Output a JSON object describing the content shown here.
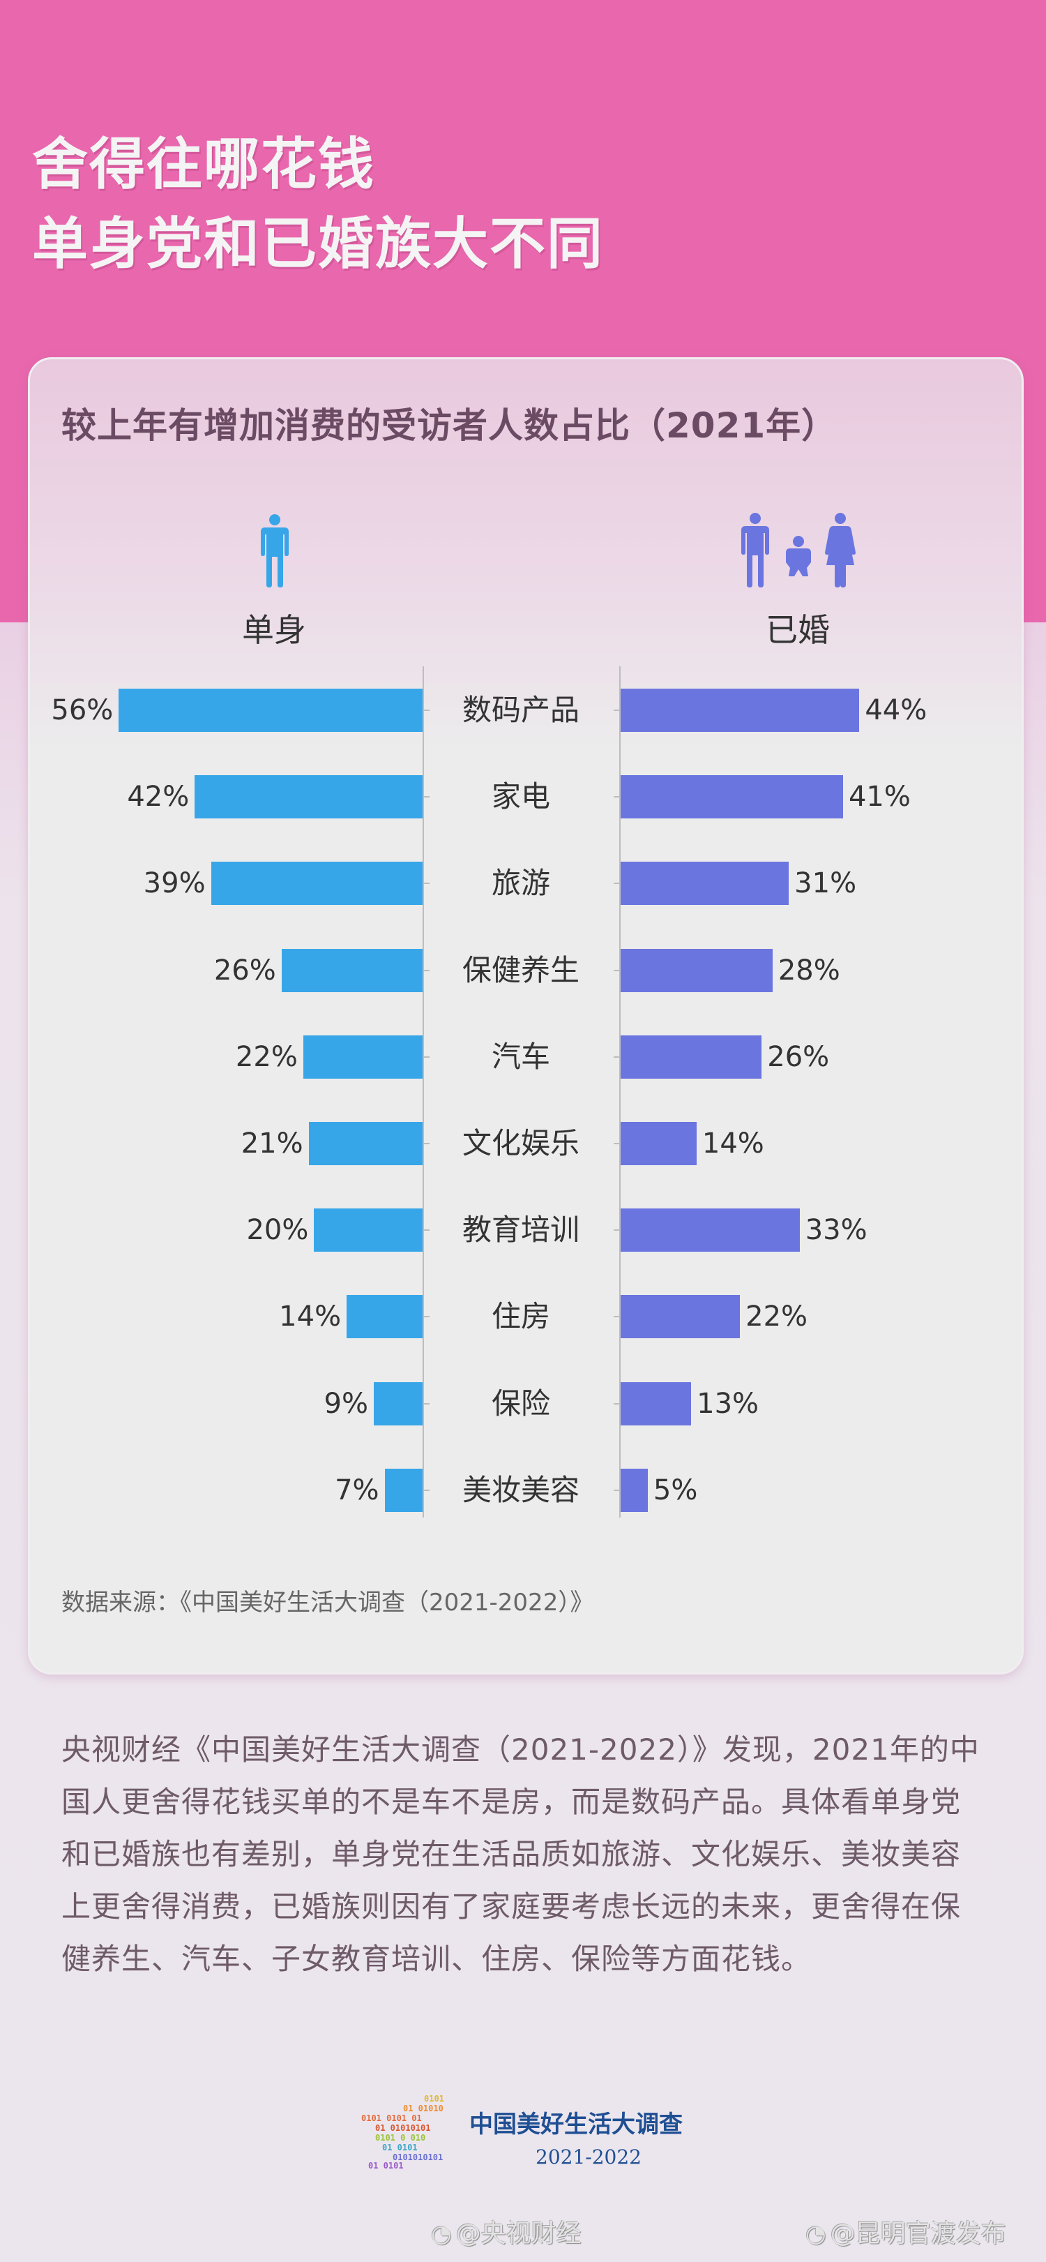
{
  "header": {
    "title_line1": "舍得往哪花钱",
    "title_line2": "单身党和已婚族大不同"
  },
  "chart_title": "较上年有增加消费的受访者人数占比（2021年）",
  "groups": {
    "left": {
      "label": "单身",
      "icon": "single-person-icon",
      "color": "#37a6e8"
    },
    "right": {
      "label": "已婚",
      "icon": "family-icon",
      "color": "#6b75e0"
    }
  },
  "rows": [
    {
      "category": "数码产品",
      "single": "56%",
      "married": "44%"
    },
    {
      "category": "家电",
      "single": "42%",
      "married": "41%"
    },
    {
      "category": "旅游",
      "single": "39%",
      "married": "31%"
    },
    {
      "category": "保健养生",
      "single": "26%",
      "married": "28%"
    },
    {
      "category": "汽车",
      "single": "22%",
      "married": "26%"
    },
    {
      "category": "文化娱乐",
      "single": "21%",
      "married": "14%"
    },
    {
      "category": "教育培训",
      "single": "20%",
      "married": "33%"
    },
    {
      "category": "住房",
      "single": "14%",
      "married": "22%"
    },
    {
      "category": "保险",
      "single": "9%",
      "married": "13%"
    },
    {
      "category": "美妆美容",
      "single": "7%",
      "married": "5%"
    }
  ],
  "source": "数据来源：《中国美好生活大调查（2021-2022）》",
  "paragraph": "央视财经《中国美好生活大调查（2021-2022）》发现，2021年的中国人更舍得花钱买单的不是车不是房，而是数码产品。具体看单身党和已婚族也有差别，单身党在生活品质如旅游、文化娱乐、美妆美容上更舍得消费，已婚族则因有了家庭要考虑长远的未来，更舍得在保健养生、汽车、子女教育培训、住房、保险等方面花钱。",
  "footer": {
    "logo_title": "中国美好生活大调查",
    "logo_year": "2021-2022",
    "watermark_left": "@央视财经",
    "watermark_right": "@昆明官渡发布"
  },
  "chart_data": {
    "type": "bar",
    "orientation": "horizontal-butterfly",
    "title": "较上年有增加消费的受访者人数占比（2021年）",
    "categories": [
      "数码产品",
      "家电",
      "旅游",
      "保健养生",
      "汽车",
      "文化娱乐",
      "教育培训",
      "住房",
      "保险",
      "美妆美容"
    ],
    "series": [
      {
        "name": "单身",
        "color": "#37a6e8",
        "values": [
          56,
          42,
          39,
          26,
          22,
          21,
          20,
          14,
          9,
          7
        ]
      },
      {
        "name": "已婚",
        "color": "#6b75e0",
        "values": [
          44,
          41,
          31,
          28,
          26,
          14,
          33,
          22,
          13,
          5
        ]
      }
    ],
    "unit": "%",
    "xlabel": "",
    "ylabel": "",
    "grid": false,
    "legend": "icons above each side",
    "source": "《中国美好生活大调查（2021-2022）》"
  }
}
